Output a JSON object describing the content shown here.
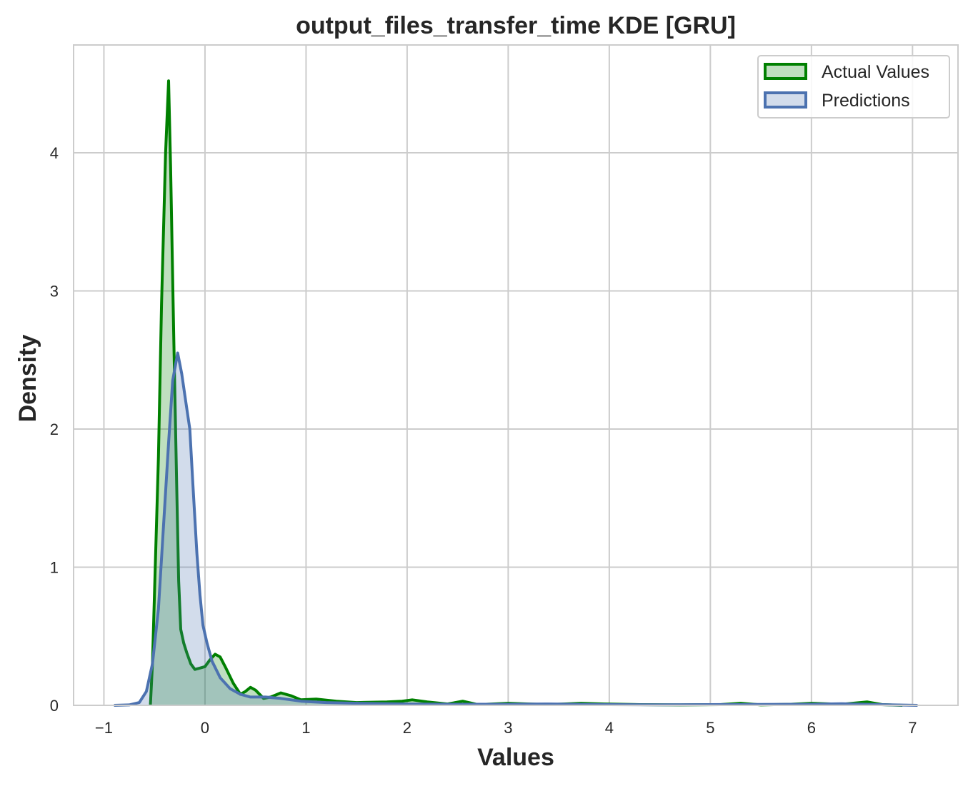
{
  "chart_data": {
    "type": "area",
    "title": "output_files_transfer_time KDE [GRU]",
    "xlabel": "Values",
    "ylabel": "Density",
    "xlim": [
      -1.3,
      7.45
    ],
    "ylim": [
      0,
      4.78
    ],
    "xticks": [
      -1,
      0,
      1,
      2,
      3,
      4,
      5,
      6,
      7
    ],
    "xtick_labels": [
      "−1",
      "0",
      "1",
      "2",
      "3",
      "4",
      "5",
      "6",
      "7"
    ],
    "yticks": [
      0,
      1,
      2,
      3,
      4
    ],
    "ytick_labels": [
      "0",
      "1",
      "2",
      "3",
      "4"
    ],
    "grid": true,
    "legend_position": "top-right",
    "series": [
      {
        "name": "Actual Values",
        "color": "#008000",
        "fill_color": "#008000",
        "fill_opacity": 0.25,
        "points": [
          [
            -0.54,
            0.0
          ],
          [
            -0.52,
            0.3
          ],
          [
            -0.5,
            0.8
          ],
          [
            -0.46,
            1.8
          ],
          [
            -0.43,
            2.9
          ],
          [
            -0.39,
            4.0
          ],
          [
            -0.36,
            4.52
          ],
          [
            -0.34,
            3.9
          ],
          [
            -0.31,
            2.7
          ],
          [
            -0.28,
            1.6
          ],
          [
            -0.26,
            0.9
          ],
          [
            -0.24,
            0.55
          ],
          [
            -0.21,
            0.45
          ],
          [
            -0.18,
            0.38
          ],
          [
            -0.14,
            0.3
          ],
          [
            -0.1,
            0.26
          ],
          [
            -0.05,
            0.27
          ],
          [
            0.0,
            0.28
          ],
          [
            0.05,
            0.33
          ],
          [
            0.1,
            0.37
          ],
          [
            0.15,
            0.35
          ],
          [
            0.2,
            0.28
          ],
          [
            0.28,
            0.16
          ],
          [
            0.35,
            0.08
          ],
          [
            0.4,
            0.1
          ],
          [
            0.45,
            0.13
          ],
          [
            0.5,
            0.11
          ],
          [
            0.58,
            0.05
          ],
          [
            0.65,
            0.06
          ],
          [
            0.75,
            0.09
          ],
          [
            0.85,
            0.07
          ],
          [
            0.95,
            0.04
          ],
          [
            1.1,
            0.045
          ],
          [
            1.3,
            0.03
          ],
          [
            1.5,
            0.02
          ],
          [
            1.8,
            0.025
          ],
          [
            1.95,
            0.03
          ],
          [
            2.05,
            0.04
          ],
          [
            2.2,
            0.025
          ],
          [
            2.4,
            0.01
          ],
          [
            2.55,
            0.03
          ],
          [
            2.7,
            0.005
          ],
          [
            3.0,
            0.015
          ],
          [
            3.4,
            0.005
          ],
          [
            3.72,
            0.015
          ],
          [
            3.95,
            0.01
          ],
          [
            4.3,
            0.005
          ],
          [
            4.7,
            0.003
          ],
          [
            5.1,
            0.005
          ],
          [
            5.3,
            0.015
          ],
          [
            5.5,
            0.003
          ],
          [
            5.8,
            0.008
          ],
          [
            6.0,
            0.015
          ],
          [
            6.3,
            0.008
          ],
          [
            6.55,
            0.025
          ],
          [
            6.7,
            0.005
          ],
          [
            6.9,
            0.0
          ]
        ]
      },
      {
        "name": "Predictions",
        "color": "#4c72b0",
        "fill_color": "#4c72b0",
        "fill_opacity": 0.25,
        "points": [
          [
            -0.9,
            0.0
          ],
          [
            -0.75,
            0.003
          ],
          [
            -0.65,
            0.02
          ],
          [
            -0.58,
            0.1
          ],
          [
            -0.52,
            0.3
          ],
          [
            -0.46,
            0.7
          ],
          [
            -0.41,
            1.3
          ],
          [
            -0.36,
            1.9
          ],
          [
            -0.32,
            2.35
          ],
          [
            -0.27,
            2.55
          ],
          [
            -0.23,
            2.4
          ],
          [
            -0.19,
            2.2
          ],
          [
            -0.15,
            2.0
          ],
          [
            -0.12,
            1.6
          ],
          [
            -0.08,
            1.1
          ],
          [
            -0.05,
            0.8
          ],
          [
            -0.02,
            0.58
          ],
          [
            0.02,
            0.45
          ],
          [
            0.07,
            0.32
          ],
          [
            0.15,
            0.2
          ],
          [
            0.25,
            0.12
          ],
          [
            0.35,
            0.08
          ],
          [
            0.45,
            0.06
          ],
          [
            0.6,
            0.06
          ],
          [
            0.75,
            0.05
          ],
          [
            0.95,
            0.03
          ],
          [
            1.2,
            0.02
          ],
          [
            1.5,
            0.015
          ],
          [
            2.0,
            0.01
          ],
          [
            2.5,
            0.008
          ],
          [
            3.0,
            0.008
          ],
          [
            3.4,
            0.01
          ],
          [
            4.0,
            0.005
          ],
          [
            4.5,
            0.004
          ],
          [
            5.0,
            0.005
          ],
          [
            5.5,
            0.006
          ],
          [
            6.0,
            0.008
          ],
          [
            6.3,
            0.012
          ],
          [
            6.6,
            0.006
          ],
          [
            6.9,
            0.002
          ],
          [
            7.05,
            0.0
          ]
        ]
      }
    ]
  }
}
